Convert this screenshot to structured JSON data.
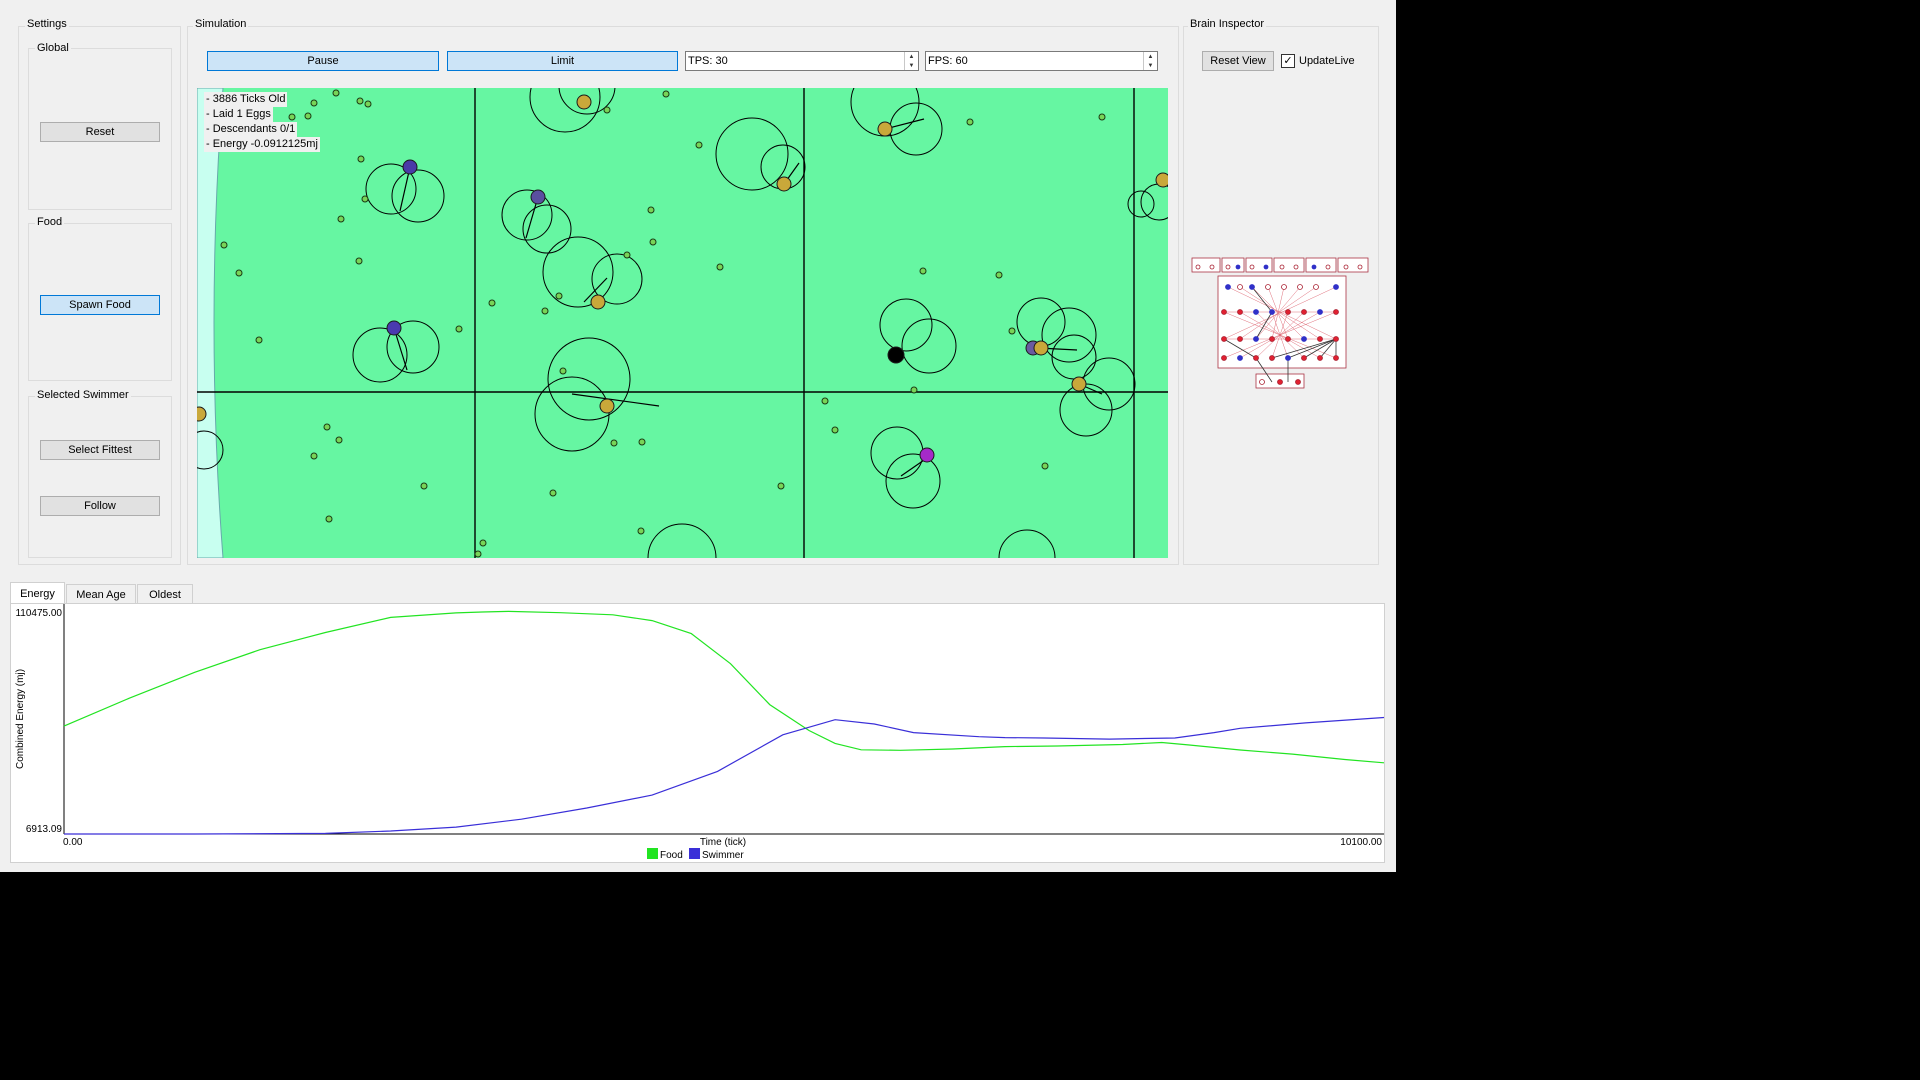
{
  "settings": {
    "title": "Settings",
    "global": {
      "title": "Global",
      "reset_label": "Reset"
    },
    "food": {
      "title": "Food",
      "spawn_label": "Spawn Food"
    },
    "selected_swimmer": {
      "title": "Selected Swimmer",
      "select_fittest_label": "Select Fittest",
      "follow_label": "Follow"
    }
  },
  "simulation": {
    "title": "Simulation",
    "pause_label": "Pause",
    "limit_label": "Limit",
    "tps": "TPS: 30",
    "fps": "FPS: 60",
    "info": [
      "- 3886 Ticks Old",
      "- Laid 1 Eggs",
      "- Descendants 0/1",
      "- Energy -0.0912125mj"
    ]
  },
  "brain_inspector": {
    "title": "Brain Inspector",
    "reset_view_label": "Reset View",
    "update_live_label": "UpdateLive",
    "update_live_checked": true
  },
  "tabs": [
    {
      "label": "Energy",
      "active": true
    },
    {
      "label": "Mean Age",
      "active": false
    },
    {
      "label": "Oldest",
      "active": false
    }
  ],
  "chart_data": {
    "type": "line",
    "xlabel": "Time (tick)",
    "ylabel": "Combined Energy (mj)",
    "xlim": [
      0,
      10100
    ],
    "ylim": [
      6913.09,
      110475.0
    ],
    "x_tick_labels": [
      "0.00",
      "10100.00"
    ],
    "y_tick_labels": [
      "110475.00",
      "6913.09"
    ],
    "legend_position": "bottom-center",
    "series": [
      {
        "name": "Food",
        "color": "#22e422",
        "x": [
          0,
          500,
          1000,
          1500,
          2000,
          2500,
          3000,
          3200,
          3400,
          3800,
          4200,
          4500,
          4800,
          5100,
          5400,
          5700,
          5900,
          6100,
          6400,
          6800,
          7200,
          7600,
          8100,
          8400,
          8600,
          9000,
          9400,
          9800,
          10100
        ],
        "y": [
          57000,
          70000,
          82000,
          92500,
          100500,
          107500,
          109600,
          110000,
          110300,
          109700,
          108700,
          106000,
          100000,
          86000,
          67000,
          55000,
          49000,
          46000,
          45800,
          46400,
          47500,
          47800,
          48500,
          49400,
          48300,
          45900,
          44000,
          41500,
          40000
        ]
      },
      {
        "name": "Swimmer",
        "color": "#3a2fd8",
        "x": [
          0,
          1000,
          2000,
          2500,
          3000,
          3500,
          4000,
          4500,
          5000,
          5500,
          5900,
          6200,
          6500,
          7000,
          7200,
          7500,
          8000,
          8500,
          8800,
          9000,
          9500,
          10100
        ],
        "y": [
          6913,
          6913,
          7200,
          8300,
          10100,
          13800,
          19000,
          25000,
          36000,
          53000,
          60000,
          58000,
          54000,
          52100,
          51700,
          51500,
          51000,
          51500,
          54000,
          56000,
          58500,
          61000
        ]
      }
    ]
  }
}
